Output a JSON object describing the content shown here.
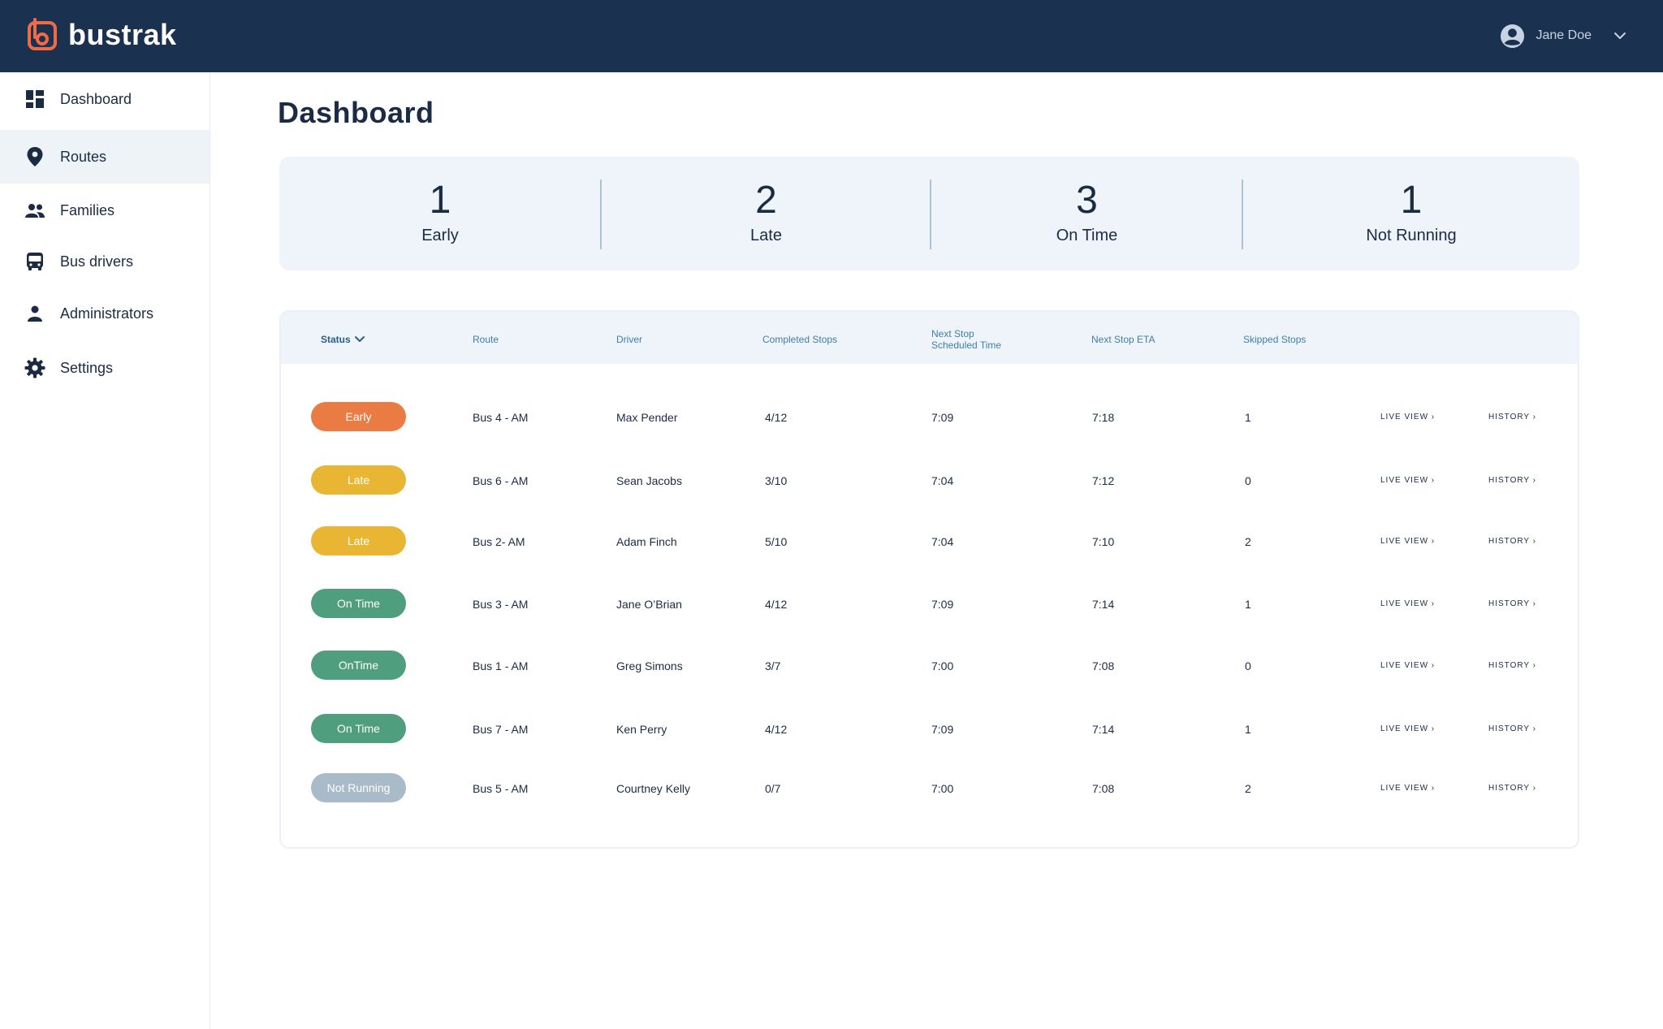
{
  "app": {
    "name": "bustrak"
  },
  "user": {
    "name": "Jane Doe"
  },
  "sidebar": {
    "items": [
      {
        "label": "Dashboard",
        "icon": "dashboard-icon"
      },
      {
        "label": "Routes",
        "icon": "location-pin-icon",
        "active": true
      },
      {
        "label": "Families",
        "icon": "people-icon"
      },
      {
        "label": "Bus drivers",
        "icon": "bus-icon"
      },
      {
        "label": "Administrators",
        "icon": "person-icon"
      },
      {
        "label": "Settings",
        "icon": "gear-icon"
      }
    ]
  },
  "page": {
    "title": "Dashboard"
  },
  "summary": [
    {
      "value": "1",
      "label": "Early"
    },
    {
      "value": "2",
      "label": "Late"
    },
    {
      "value": "3",
      "label": "On Time"
    },
    {
      "value": "1",
      "label": "Not Running"
    }
  ],
  "table": {
    "headers": {
      "status": "Status",
      "route": "Route",
      "driver": "Driver",
      "completed": "Completed Stops",
      "next_sched_1": "Next Stop",
      "next_sched_2": "Scheduled Time",
      "eta": "Next Stop ETA",
      "skipped": "Skipped Stops"
    },
    "link_live": "LIVE VIEW ›",
    "link_history": "HISTORY ›",
    "status_colors": {
      "early": "#ea7c43",
      "late": "#e8b632",
      "on_time": "#4f9e7d",
      "not_running": "#a9bac9"
    },
    "rows": [
      {
        "status": "Early",
        "status_key": "early",
        "route": "Bus 4 - AM",
        "driver": "Max Pender",
        "completed": "4/12",
        "scheduled": "7:09",
        "eta": "7:18",
        "skipped": "1"
      },
      {
        "status": "Late",
        "status_key": "late",
        "route": "Bus 6  - AM",
        "driver": "Sean Jacobs",
        "completed": "3/10",
        "scheduled": "7:04",
        "eta": "7:12",
        "skipped": "0"
      },
      {
        "status": "Late",
        "status_key": "late",
        "route": "Bus 2- AM",
        "driver": "Adam Finch",
        "completed": "5/10",
        "scheduled": "7:04",
        "eta": "7:10",
        "skipped": "2"
      },
      {
        "status": "On Time",
        "status_key": "on_time",
        "route": "Bus 3 - AM",
        "driver": "Jane O’Brian",
        "completed": "4/12",
        "scheduled": "7:09",
        "eta": "7:14",
        "skipped": "1"
      },
      {
        "status": "OnTime",
        "status_key": "on_time",
        "route": "Bus 1 - AM",
        "driver": "Greg Simons",
        "completed": "3/7",
        "scheduled": "7:00",
        "eta": "7:08",
        "skipped": "0"
      },
      {
        "status": "On Time",
        "status_key": "on_time",
        "route": "Bus 7 - AM",
        "driver": "Ken Perry",
        "completed": "4/12",
        "scheduled": "7:09",
        "eta": "7:14",
        "skipped": "1"
      },
      {
        "status": "Not Running",
        "status_key": "not_running",
        "route": "Bus 5 - AM",
        "driver": "Courtney Kelly",
        "completed": "0/7",
        "scheduled": "7:00",
        "eta": "7:08",
        "skipped": "2"
      }
    ]
  }
}
